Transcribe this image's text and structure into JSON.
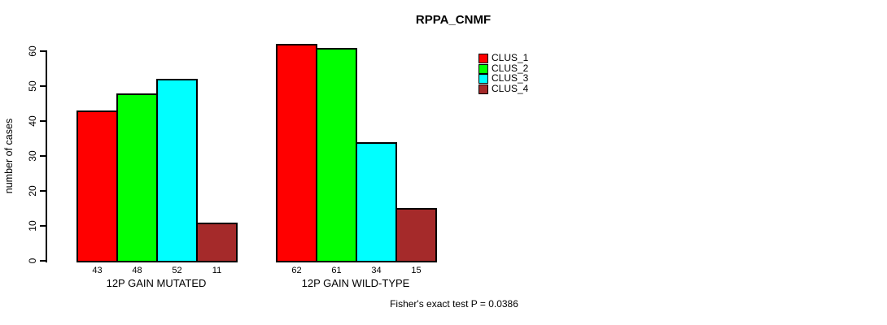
{
  "title": "RPPA_CNMF",
  "caption": "Fisher's exact test P = 0.0386",
  "y_axis": {
    "label": "number of cases",
    "ticks": [
      "0",
      "10",
      "20",
      "30",
      "40",
      "50",
      "60"
    ]
  },
  "colors": {
    "background": "#FFFFFF",
    "bar_border": "#000000",
    "text": "#000000"
  },
  "chart_data": {
    "type": "bar",
    "title": "RPPA_CNMF",
    "xlabel": "",
    "ylabel": "number of cases",
    "ylim": [
      0,
      60
    ],
    "yticks": [
      0,
      10,
      20,
      30,
      40,
      50,
      60
    ],
    "grid": false,
    "legend_position": "top-right",
    "bar_value_labels": true,
    "categories": [
      "12P GAIN MUTATED",
      "12P GAIN WILD-TYPE"
    ],
    "series": [
      {
        "name": "CLUS_1",
        "color": "#FF0000",
        "values": [
          43,
          62
        ]
      },
      {
        "name": "CLUS_2",
        "color": "#00FF00",
        "values": [
          48,
          61
        ]
      },
      {
        "name": "CLUS_3",
        "color": "#00FFFF",
        "values": [
          52,
          34
        ]
      },
      {
        "name": "CLUS_4",
        "color": "#A52A2A",
        "values": [
          11,
          15
        ]
      }
    ],
    "annotation": "Fisher's exact test P = 0.0386"
  }
}
